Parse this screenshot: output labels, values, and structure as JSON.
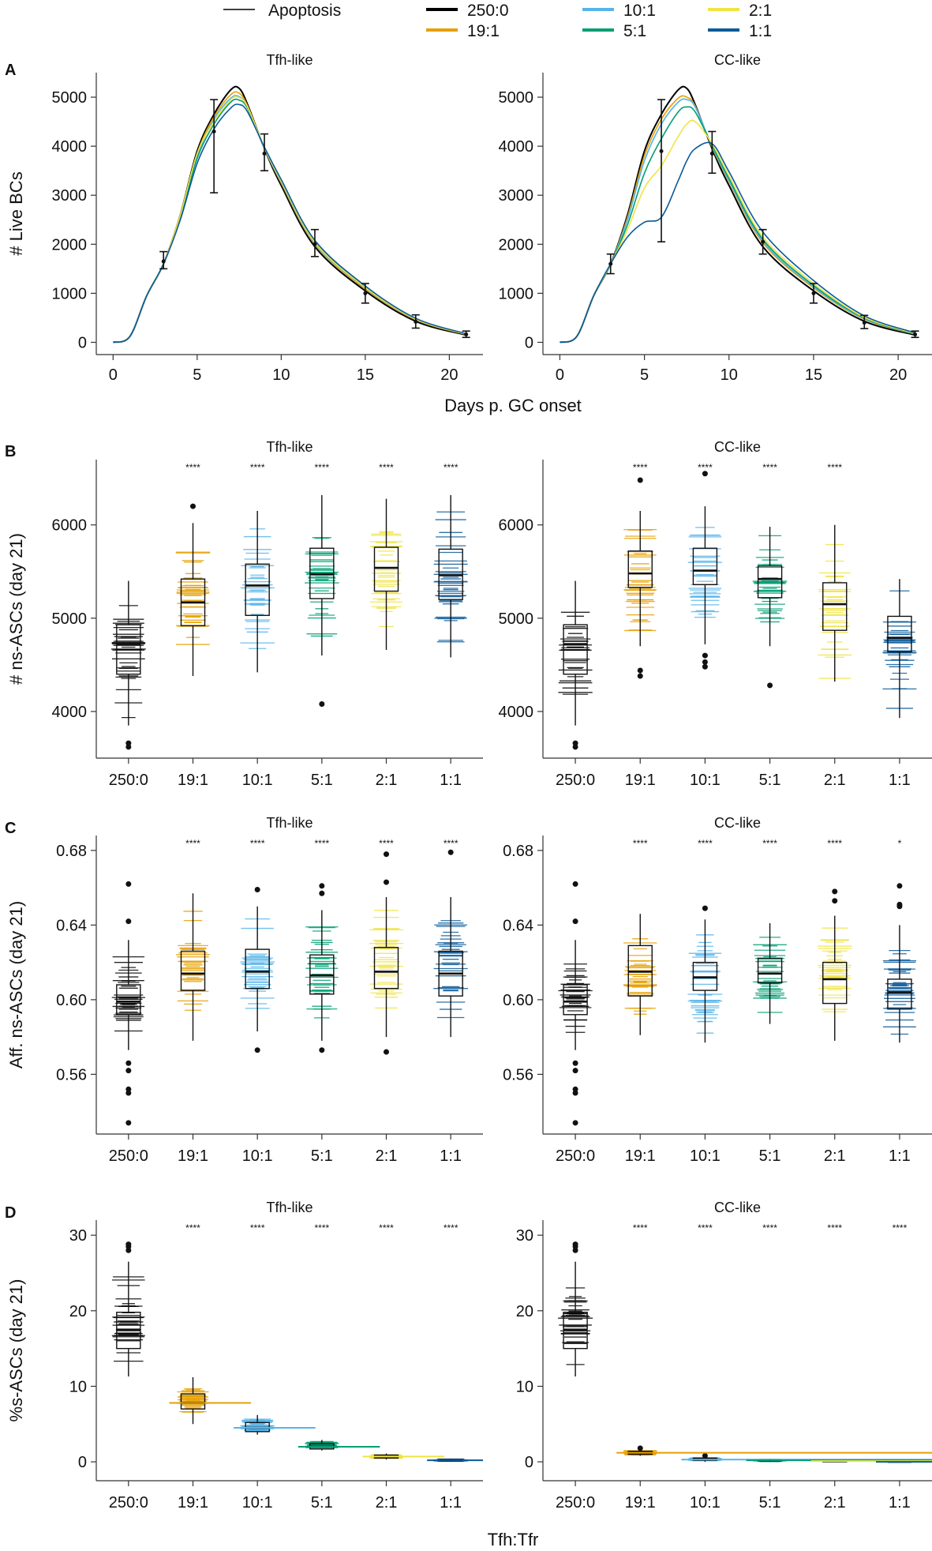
{
  "legend": {
    "apoptosis_label": "Apoptosis",
    "entries": [
      {
        "label": "250:0",
        "color": "#000000"
      },
      {
        "label": "10:1",
        "color": "#56B4E9"
      },
      {
        "label": "2:1",
        "color": "#F0E442"
      },
      {
        "label": "19:1",
        "color": "#E69F00"
      },
      {
        "label": "5:1",
        "color": "#009E73"
      },
      {
        "label": "1:1",
        "color": "#0A5A9A"
      }
    ]
  },
  "panel_letters": [
    "A",
    "B",
    "C",
    "D"
  ],
  "bottom_xlabel": "Tfh:Tfr",
  "chart_data": [
    {
      "id": "A-tfh",
      "panel": "A",
      "type": "line",
      "title": "Tfh-like",
      "xlabel": "Days p. GC onset",
      "ylabel": "# Live BCs",
      "xlim": [
        -1,
        22
      ],
      "ylim": [
        -250,
        5500
      ],
      "xticks": [
        0,
        5,
        10,
        15,
        20
      ],
      "yticks": [
        0,
        1000,
        2000,
        3000,
        4000,
        5000
      ],
      "x": [
        0,
        1,
        2,
        3,
        4,
        5,
        6,
        7,
        7.5,
        8,
        9,
        10,
        12,
        15,
        18,
        21
      ],
      "series": [
        {
          "name": "250:0",
          "values": [
            0,
            120,
            950,
            1600,
            2600,
            3900,
            4650,
            5150,
            5180,
            4850,
            3950,
            3200,
            1950,
            1050,
            430,
            150
          ]
        },
        {
          "name": "19:1",
          "values": [
            0,
            120,
            950,
            1600,
            2580,
            3850,
            4600,
            5050,
            5080,
            4820,
            3950,
            3250,
            2000,
            1090,
            460,
            160
          ]
        },
        {
          "name": "10:1",
          "values": [
            0,
            120,
            950,
            1600,
            2560,
            3800,
            4550,
            4980,
            5010,
            4800,
            3950,
            3270,
            2020,
            1110,
            470,
            165
          ]
        },
        {
          "name": "5:1",
          "values": [
            0,
            120,
            950,
            1600,
            2550,
            3750,
            4450,
            4900,
            4940,
            4770,
            3970,
            3300,
            2050,
            1130,
            480,
            170
          ]
        },
        {
          "name": "2:1",
          "values": [
            0,
            120,
            950,
            1600,
            2600,
            3850,
            4500,
            4950,
            4990,
            4800,
            3970,
            3290,
            2040,
            1120,
            475,
            168
          ]
        },
        {
          "name": "1:1",
          "values": [
            0,
            120,
            950,
            1600,
            2500,
            3650,
            4350,
            4780,
            4850,
            4700,
            3980,
            3320,
            2080,
            1150,
            490,
            175
          ]
        }
      ],
      "error_bars": [
        {
          "x": 3,
          "y": 1650,
          "low": 1500,
          "high": 1850
        },
        {
          "x": 6,
          "y": 4300,
          "low": 3050,
          "high": 4950
        },
        {
          "x": 9,
          "y": 3850,
          "low": 3500,
          "high": 4250
        },
        {
          "x": 12,
          "y": 2000,
          "low": 1750,
          "high": 2300
        },
        {
          "x": 15,
          "y": 1000,
          "low": 800,
          "high": 1200
        },
        {
          "x": 18,
          "y": 420,
          "low": 290,
          "high": 560
        },
        {
          "x": 21,
          "y": 160,
          "low": 100,
          "high": 230
        }
      ]
    },
    {
      "id": "A-cc",
      "panel": "A",
      "type": "line",
      "title": "CC-like",
      "xlabel": "Days p. GC onset",
      "ylabel": "",
      "xlim": [
        -1,
        22
      ],
      "ylim": [
        -250,
        5500
      ],
      "xticks": [
        0,
        5,
        10,
        15,
        20
      ],
      "yticks": [
        0,
        1000,
        2000,
        3000,
        4000,
        5000
      ],
      "x": [
        0,
        1,
        2,
        3,
        4,
        5,
        6,
        7,
        7.5,
        8,
        9,
        10,
        12,
        15,
        18,
        21
      ],
      "series": [
        {
          "name": "250:0",
          "values": [
            0,
            120,
            950,
            1600,
            2600,
            3900,
            4650,
            5150,
            5180,
            4850,
            3950,
            3200,
            1950,
            1050,
            430,
            150
          ]
        },
        {
          "name": "19:1",
          "values": [
            0,
            120,
            950,
            1600,
            2550,
            3800,
            4550,
            4980,
            5000,
            4820,
            3980,
            3280,
            2030,
            1110,
            470,
            165
          ]
        },
        {
          "name": "10:1",
          "values": [
            0,
            120,
            950,
            1600,
            2500,
            3700,
            4450,
            4900,
            4950,
            4800,
            4000,
            3300,
            2060,
            1130,
            480,
            170
          ]
        },
        {
          "name": "5:1",
          "values": [
            0,
            120,
            950,
            1600,
            2400,
            3450,
            4150,
            4700,
            4800,
            4700,
            4020,
            3340,
            2100,
            1160,
            495,
            178
          ]
        },
        {
          "name": "2:1",
          "values": [
            0,
            120,
            950,
            1600,
            2300,
            3150,
            3600,
            4200,
            4450,
            4500,
            4050,
            3400,
            2150,
            1200,
            510,
            185
          ]
        },
        {
          "name": "1:1",
          "values": [
            0,
            120,
            950,
            1600,
            2150,
            2450,
            2550,
            3300,
            3700,
            3950,
            4050,
            3480,
            2250,
            1260,
            540,
            195
          ]
        }
      ],
      "error_bars": [
        {
          "x": 3,
          "y": 1600,
          "low": 1400,
          "high": 1800
        },
        {
          "x": 6,
          "y": 3900,
          "low": 2050,
          "high": 4950
        },
        {
          "x": 9,
          "y": 3850,
          "low": 3450,
          "high": 4300
        },
        {
          "x": 12,
          "y": 2050,
          "low": 1800,
          "high": 2300
        },
        {
          "x": 15,
          "y": 1000,
          "low": 800,
          "high": 1200
        },
        {
          "x": 18,
          "y": 400,
          "low": 280,
          "high": 550
        },
        {
          "x": 21,
          "y": 160,
          "low": 100,
          "high": 230
        }
      ]
    },
    {
      "id": "B-tfh",
      "panel": "B",
      "type": "box",
      "title": "Tfh-like",
      "xlabel": "",
      "ylabel": "# ns-ASCs (day 21)",
      "ylim": [
        3500,
        6700
      ],
      "yticks": [
        4000,
        5000,
        6000
      ],
      "categories": [
        "250:0",
        "19:1",
        "10:1",
        "5:1",
        "2:1",
        "1:1"
      ],
      "significance": [
        "",
        "****",
        "****",
        "****",
        "****",
        "****"
      ],
      "boxes": [
        {
          "q1": 4400,
          "median": 4720,
          "q3": 4930,
          "whisker_low": 3850,
          "whisker_high": 5400,
          "outliers": [
            3620,
            3660
          ]
        },
        {
          "q1": 4920,
          "median": 5170,
          "q3": 5420,
          "whisker_low": 4380,
          "whisker_high": 6020,
          "outliers": [
            6200
          ]
        },
        {
          "q1": 5030,
          "median": 5350,
          "q3": 5580,
          "whisker_low": 4420,
          "whisker_high": 6150,
          "outliers": []
        },
        {
          "q1": 5210,
          "median": 5470,
          "q3": 5750,
          "whisker_low": 4600,
          "whisker_high": 6320,
          "outliers": [
            4080
          ]
        },
        {
          "q1": 5290,
          "median": 5540,
          "q3": 5760,
          "whisker_low": 4660,
          "whisker_high": 6280,
          "outliers": []
        },
        {
          "q1": 5200,
          "median": 5460,
          "q3": 5740,
          "whisker_low": 4580,
          "whisker_high": 6320,
          "outliers": []
        }
      ]
    },
    {
      "id": "B-cc",
      "panel": "B",
      "type": "box",
      "title": "CC-like",
      "xlabel": "",
      "ylabel": "",
      "ylim": [
        3500,
        6700
      ],
      "yticks": [
        4000,
        5000,
        6000
      ],
      "categories": [
        "250:0",
        "19:1",
        "10:1",
        "5:1",
        "2:1",
        "1:1"
      ],
      "significance": [
        "",
        "****",
        "****",
        "****",
        "****",
        ""
      ],
      "boxes": [
        {
          "q1": 4400,
          "median": 4720,
          "q3": 4930,
          "whisker_low": 3850,
          "whisker_high": 5400,
          "outliers": [
            3620,
            3660
          ]
        },
        {
          "q1": 5330,
          "median": 5480,
          "q3": 5720,
          "whisker_low": 4700,
          "whisker_high": 6150,
          "outliers": [
            4380,
            4440,
            6480
          ]
        },
        {
          "q1": 5360,
          "median": 5510,
          "q3": 5750,
          "whisker_low": 4720,
          "whisker_high": 6200,
          "outliers": [
            4480,
            4530,
            4600,
            6550
          ]
        },
        {
          "q1": 5220,
          "median": 5420,
          "q3": 5560,
          "whisker_low": 4700,
          "whisker_high": 5980,
          "outliers": [
            4280
          ]
        },
        {
          "q1": 4870,
          "median": 5150,
          "q3": 5380,
          "whisker_low": 4320,
          "whisker_high": 6000,
          "outliers": []
        },
        {
          "q1": 4640,
          "median": 4790,
          "q3": 5020,
          "whisker_low": 3930,
          "whisker_high": 5420,
          "outliers": []
        }
      ]
    },
    {
      "id": "C-tfh",
      "panel": "C",
      "type": "box",
      "title": "Tfh-like",
      "xlabel": "",
      "ylabel": "Aff. ns-ASCs (day 21)",
      "ylim": [
        0.528,
        0.688
      ],
      "yticks": [
        0.56,
        0.6,
        0.64,
        0.68
      ],
      "ytick_labels": [
        "0.56",
        "0.60",
        "0.64",
        "0.68"
      ],
      "categories": [
        "250:0",
        "19:1",
        "10:1",
        "5:1",
        "2:1",
        "1:1"
      ],
      "significance": [
        "",
        "****",
        "****",
        "****",
        "****",
        "****"
      ],
      "boxes": [
        {
          "q1": 0.592,
          "median": 0.599,
          "q3": 0.608,
          "whisker_low": 0.573,
          "whisker_high": 0.632,
          "outliers": [
            0.534,
            0.55,
            0.552,
            0.562,
            0.566,
            0.642,
            0.662
          ]
        },
        {
          "q1": 0.605,
          "median": 0.614,
          "q3": 0.626,
          "whisker_low": 0.578,
          "whisker_high": 0.657,
          "outliers": []
        },
        {
          "q1": 0.606,
          "median": 0.615,
          "q3": 0.627,
          "whisker_low": 0.583,
          "whisker_high": 0.65,
          "outliers": [
            0.573,
            0.659
          ]
        },
        {
          "q1": 0.603,
          "median": 0.613,
          "q3": 0.624,
          "whisker_low": 0.578,
          "whisker_high": 0.648,
          "outliers": [
            0.573,
            0.657,
            0.661
          ]
        },
        {
          "q1": 0.606,
          "median": 0.615,
          "q3": 0.628,
          "whisker_low": 0.58,
          "whisker_high": 0.655,
          "outliers": [
            0.572,
            0.663,
            0.678
          ]
        },
        {
          "q1": 0.602,
          "median": 0.614,
          "q3": 0.626,
          "whisker_low": 0.58,
          "whisker_high": 0.655,
          "outliers": [
            0.679
          ]
        }
      ]
    },
    {
      "id": "C-cc",
      "panel": "C",
      "type": "box",
      "title": "CC-like",
      "xlabel": "",
      "ylabel": "",
      "ylim": [
        0.528,
        0.688
      ],
      "yticks": [
        0.56,
        0.6,
        0.64,
        0.68
      ],
      "ytick_labels": [
        "0.56",
        "0.60",
        "0.64",
        "0.68"
      ],
      "categories": [
        "250:0",
        "19:1",
        "10:1",
        "5:1",
        "2:1",
        "1:1"
      ],
      "significance": [
        "",
        "****",
        "****",
        "****",
        "****",
        "*"
      ],
      "boxes": [
        {
          "q1": 0.592,
          "median": 0.599,
          "q3": 0.608,
          "whisker_low": 0.573,
          "whisker_high": 0.632,
          "outliers": [
            0.534,
            0.55,
            0.552,
            0.562,
            0.566,
            0.642,
            0.662
          ]
        },
        {
          "q1": 0.602,
          "median": 0.615,
          "q3": 0.629,
          "whisker_low": 0.581,
          "whisker_high": 0.646,
          "outliers": []
        },
        {
          "q1": 0.605,
          "median": 0.612,
          "q3": 0.62,
          "whisker_low": 0.577,
          "whisker_high": 0.643,
          "outliers": [
            0.649
          ]
        },
        {
          "q1": 0.609,
          "median": 0.614,
          "q3": 0.622,
          "whisker_low": 0.587,
          "whisker_high": 0.641,
          "outliers": []
        },
        {
          "q1": 0.598,
          "median": 0.611,
          "q3": 0.62,
          "whisker_low": 0.578,
          "whisker_high": 0.645,
          "outliers": [
            0.653,
            0.658
          ]
        },
        {
          "q1": 0.595,
          "median": 0.604,
          "q3": 0.611,
          "whisker_low": 0.577,
          "whisker_high": 0.64,
          "outliers": [
            0.65,
            0.651,
            0.661
          ]
        }
      ]
    },
    {
      "id": "D-tfh",
      "panel": "D",
      "type": "box",
      "title": "Tfh-like",
      "xlabel": "",
      "ylabel": "%s-ASCs (day 21)",
      "ylim": [
        -2.5,
        32
      ],
      "yticks": [
        0,
        10,
        20,
        30
      ],
      "categories": [
        "250:0",
        "19:1",
        "10:1",
        "5:1",
        "2:1",
        "1:1"
      ],
      "significance": [
        "",
        "****",
        "****",
        "****",
        "****",
        "****"
      ],
      "boxes": [
        {
          "q1": 15.0,
          "median": 17.5,
          "q3": 19.8,
          "whisker_low": 11.3,
          "whisker_high": 26.5,
          "outliers": [
            28.0,
            28.5,
            28.8
          ]
        },
        {
          "q1": 7.0,
          "median": 7.8,
          "q3": 9.0,
          "whisker_low": 5.0,
          "whisker_high": 11.2,
          "outliers": []
        },
        {
          "q1": 4.0,
          "median": 4.5,
          "q3": 5.2,
          "whisker_low": 3.6,
          "whisker_high": 6.2,
          "outliers": []
        },
        {
          "q1": 1.7,
          "median": 2.0,
          "q3": 2.4,
          "whisker_low": 1.5,
          "whisker_high": 2.9,
          "outliers": []
        },
        {
          "q1": 0.5,
          "median": 0.7,
          "q3": 0.9,
          "whisker_low": 0.3,
          "whisker_high": 1.1,
          "outliers": []
        },
        {
          "q1": 0.1,
          "median": 0.2,
          "q3": 0.3,
          "whisker_low": 0.0,
          "whisker_high": 0.4,
          "outliers": []
        }
      ]
    },
    {
      "id": "D-cc",
      "panel": "D",
      "type": "box",
      "title": "CC-like",
      "xlabel": "",
      "ylabel": "",
      "ylim": [
        -2.5,
        32
      ],
      "yticks": [
        0,
        10,
        20,
        30
      ],
      "categories": [
        "250:0",
        "19:1",
        "10:1",
        "5:1",
        "2:1",
        "1:1"
      ],
      "significance": [
        "",
        "****",
        "****",
        "****",
        "****",
        "****"
      ],
      "boxes": [
        {
          "q1": 15.0,
          "median": 17.5,
          "q3": 19.8,
          "whisker_low": 11.3,
          "whisker_high": 26.5,
          "outliers": [
            28.0,
            28.5,
            28.8
          ]
        },
        {
          "q1": 1.0,
          "median": 1.2,
          "q3": 1.4,
          "whisker_low": 0.8,
          "whisker_high": 1.6,
          "outliers": [
            1.8
          ]
        },
        {
          "q1": 0.2,
          "median": 0.3,
          "q3": 0.5,
          "whisker_low": 0.0,
          "whisker_high": 0.7,
          "outliers": [
            0.8
          ]
        },
        {
          "q1": 0.1,
          "median": 0.2,
          "q3": 0.3,
          "whisker_low": 0.0,
          "whisker_high": 0.4,
          "outliers": []
        },
        {
          "q1": 0.0,
          "median": 0.1,
          "q3": 0.2,
          "whisker_low": 0.0,
          "whisker_high": 0.3,
          "outliers": []
        },
        {
          "q1": 0.0,
          "median": 0.0,
          "q3": 0.1,
          "whisker_low": 0.0,
          "whisker_high": 0.2,
          "outliers": []
        }
      ]
    }
  ]
}
